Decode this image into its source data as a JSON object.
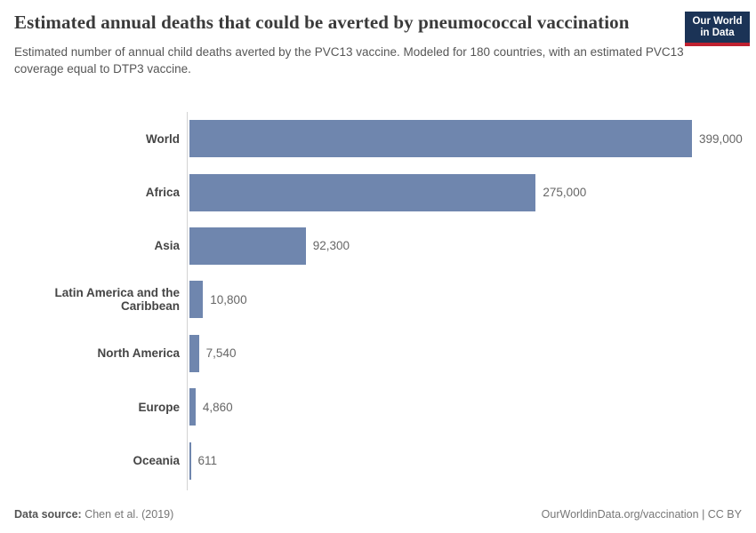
{
  "header": {
    "title": "Estimated annual deaths that could be averted by pneumococcal vaccination",
    "subtitle": "Estimated number of annual child deaths averted by the PVC13 vaccine. Modeled for 180 countries, with an estimated PVC13 coverage equal to DTP3 vaccine.",
    "logo": {
      "line1": "Our World",
      "line2": "in Data",
      "bg_color": "#1b3356",
      "accent_color": "#bf2130"
    }
  },
  "chart_data": {
    "type": "bar",
    "orientation": "horizontal",
    "title": "Estimated annual deaths that could be averted by pneumococcal vaccination",
    "subtitle": "Estimated number of annual child deaths averted by the PVC13 vaccine. Modeled for 180 countries, with an estimated PVC13 coverage equal to DTP3 vaccine.",
    "categories": [
      "World",
      "Africa",
      "Asia",
      "Latin America and the Caribbean",
      "North America",
      "Europe",
      "Oceania"
    ],
    "values": [
      399000,
      275000,
      92300,
      10800,
      7540,
      4860,
      611
    ],
    "value_labels": [
      "399,000",
      "275,000",
      "92,300",
      "10,800",
      "7,540",
      "4,860",
      "611"
    ],
    "xlabel": "",
    "ylabel": "",
    "xlim": [
      0,
      399000
    ],
    "grid": false,
    "legend": "none",
    "bar_color": "#6f86ae",
    "axis_color": "#d3d3d3"
  },
  "footer": {
    "source_label": "Data source:",
    "source_value": " Chen et al. (2019)",
    "right_text": "OurWorldinData.org/vaccination | CC BY"
  }
}
